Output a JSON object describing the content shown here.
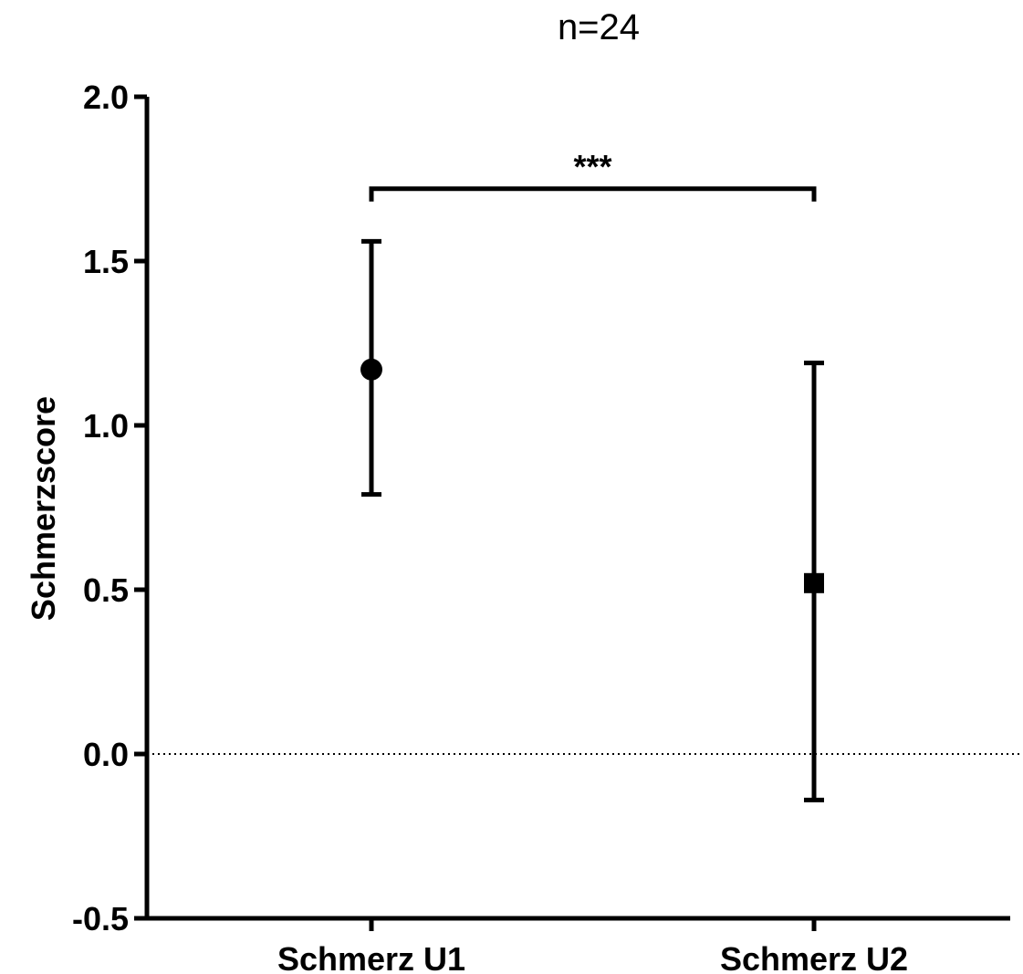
{
  "chart_data": {
    "type": "scatter",
    "title": "n=24",
    "ylabel": "Schmerzscore",
    "xlabel": "",
    "categories": [
      "Schmerz U1",
      "Schmerz U2"
    ],
    "ylim": [
      -0.5,
      2.0
    ],
    "yticks": [
      "2.0",
      "1.5",
      "1.0",
      "0.5",
      "0.0",
      "-0.5"
    ],
    "ytick_values": [
      2.0,
      1.5,
      1.0,
      0.5,
      0.0,
      -0.5
    ],
    "points": [
      {
        "category": "Schmerz U1",
        "mean": 1.17,
        "err_low": 0.79,
        "err_high": 1.56,
        "marker": "circle"
      },
      {
        "category": "Schmerz U2",
        "mean": 0.52,
        "err_low": -0.14,
        "err_high": 1.19,
        "marker": "square"
      }
    ],
    "reference_line": {
      "y": 0.0,
      "style": "dotted"
    },
    "significance": {
      "label": "***",
      "from": "Schmerz U1",
      "to": "Schmerz U2",
      "y": 1.72
    },
    "grid": false,
    "legend": "none"
  }
}
